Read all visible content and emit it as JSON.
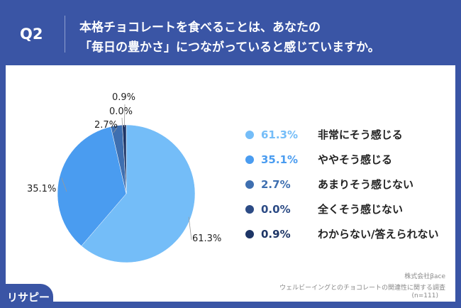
{
  "header": {
    "q": "Q2",
    "title_line1": "本格チョコレートを食べることは、あなたの",
    "title_line2": "「毎日の豊かさ」につながっていると感じていますか。"
  },
  "chart_data": {
    "type": "pie",
    "start": "top",
    "direction": "clockwise",
    "slices": [
      {
        "label": "非常にそう感じる",
        "value": 61.3,
        "display": "61.3%",
        "color": "#74bdf8"
      },
      {
        "label": "ややそう感じる",
        "value": 35.1,
        "display": "35.1%",
        "color": "#4a9cf0"
      },
      {
        "label": "あまりそう感じない",
        "value": 2.7,
        "display": "2.7%",
        "color": "#3e6fb0"
      },
      {
        "label": "全くそう感じない",
        "value": 0.0,
        "display": "0.0%",
        "color": "#2c4b85"
      },
      {
        "label": "わからない/答えられない",
        "value": 0.9,
        "display": "0.9%",
        "color": "#1d3566"
      }
    ]
  },
  "source": {
    "company": "株式会社βace",
    "survey": "ウェルビーイングとのチョコレートの関連性に関する調査",
    "n": "(n=111)"
  },
  "logo": "リサピー"
}
